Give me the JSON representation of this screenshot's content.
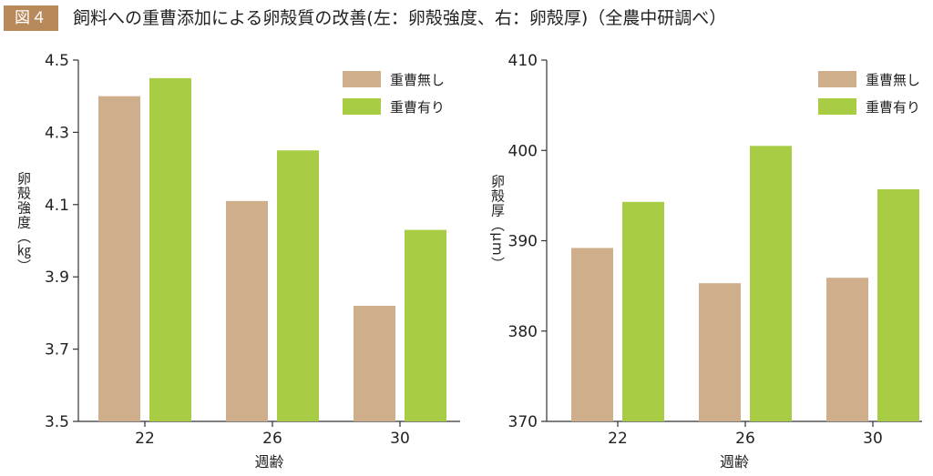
{
  "figure": {
    "badge": "図４",
    "title": "飼料への重曹添加による卵殻質の改善(左：卵殻強度、右：卵殻厚)（全農中研調べ）"
  },
  "colors": {
    "no_bicarb": "#cfae8b",
    "with_bicarb": "#a8cc44",
    "axis": "#333333",
    "badge": "#b8895a"
  },
  "chart_data": [
    {
      "type": "bar",
      "categories": [
        "22",
        "26",
        "30"
      ],
      "xlabel": "週齢",
      "ylabel": "卵殻強度（㎏）",
      "ylim": [
        3.5,
        4.5
      ],
      "yticks": [
        "3.5",
        "3.7",
        "3.9",
        "4.1",
        "4.3",
        "4.5"
      ],
      "legend_position": "top-right",
      "grid": false,
      "series": [
        {
          "name": "重曹無し",
          "values": [
            4.4,
            4.11,
            3.82
          ]
        },
        {
          "name": "重曹有り",
          "values": [
            4.45,
            4.25,
            4.03
          ]
        }
      ]
    },
    {
      "type": "bar",
      "categories": [
        "22",
        "26",
        "30"
      ],
      "xlabel": "週齢",
      "ylabel": "卵殻厚（μm）",
      "ylim": [
        370,
        410
      ],
      "yticks": [
        "370",
        "380",
        "390",
        "400",
        "410"
      ],
      "legend_position": "top-right",
      "grid": false,
      "series": [
        {
          "name": "重曹無し",
          "values": [
            389.2,
            385.3,
            385.9
          ]
        },
        {
          "name": "重曹有り",
          "values": [
            394.3,
            400.5,
            395.7
          ]
        }
      ]
    }
  ]
}
